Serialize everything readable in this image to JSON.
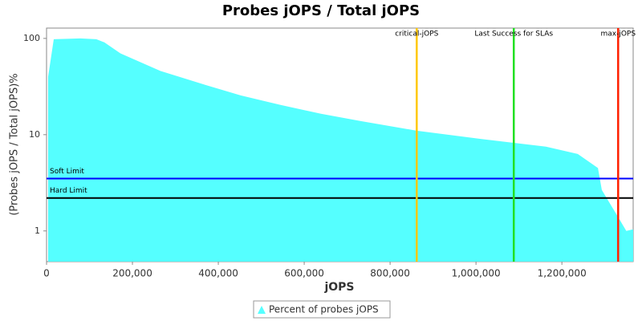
{
  "chart_data": {
    "type": "area",
    "title": "Probes jOPS / Total jOPS",
    "x_label": "jOPS",
    "y_label": "(Probes jOPS / Total jOPS)%",
    "log_y": true,
    "x": [
      3700,
      16800,
      78500,
      116000,
      134600,
      172000,
      265000,
      359000,
      452000,
      546000,
      639000,
      733000,
      862000,
      1013000,
      1163000,
      1237000,
      1284000,
      1293000,
      1321000,
      1350000,
      1366000
    ],
    "series": [
      {
        "name": "Percent of probes jOPS",
        "color": "#55ffff",
        "values": [
          40,
          98,
          100,
          98,
          91,
          70,
          46,
          34,
          25.6,
          20.3,
          16.5,
          13.8,
          11,
          9,
          7.5,
          6.3,
          4.5,
          2.66,
          1.65,
          1.0,
          1.04
        ]
      }
    ],
    "xlim": [
      0,
      1366000
    ],
    "ylim": [
      0.48,
      128
    ],
    "xticks": [
      0,
      {
        "value": 200000,
        "label": "200,000"
      },
      {
        "value": 400000,
        "label": "400,000"
      },
      {
        "value": 600000,
        "label": "600,000"
      },
      {
        "value": 800000,
        "label": "800,000"
      },
      {
        "value": 1000000,
        "label": "1,000,000"
      },
      {
        "value": 1200000,
        "label": "1,200,000"
      }
    ],
    "yticks": [
      1,
      10,
      100
    ],
    "vertical_lines": [
      {
        "label": "critical-jOPS",
        "value": 862000,
        "color": "#ffc800"
      },
      {
        "label": "Last Success for SLAs",
        "value": 1088000,
        "color": "#22e022"
      },
      {
        "label": "max-jOPS",
        "value": 1331000,
        "color": "#ff2000"
      }
    ],
    "horizontal_lines": [
      {
        "label": "Soft Limit",
        "value": 3.5,
        "color": "#0000ff"
      },
      {
        "label": "Hard Limit",
        "value": 2.2,
        "color": "#000000"
      }
    ]
  }
}
